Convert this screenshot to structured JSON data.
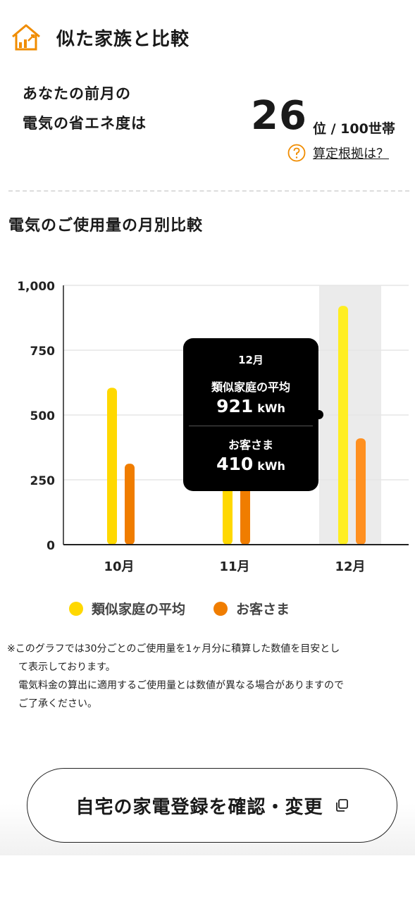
{
  "header": {
    "title": "似た家族と比較",
    "icon": "house-chart-icon"
  },
  "rank": {
    "label_line1": "あなたの前月の",
    "label_line2": "電気の省エネ度は",
    "value": "26",
    "suffix": "位 / 100世帯",
    "basis_link": "算定根拠は？",
    "basis_icon": "question-circle-icon"
  },
  "section_title": "電気のご使用量の月別比較",
  "chart_data": {
    "type": "bar",
    "categories": [
      "10月",
      "11月",
      "12月"
    ],
    "series": [
      {
        "name": "類似家庭の平均",
        "values": [
          605,
          610,
          921
        ],
        "color": "#FFD800"
      },
      {
        "name": "お客さま",
        "values": [
          312,
          300,
          410
        ],
        "color": "#F07D00"
      }
    ],
    "ylim": [
      0,
      1000
    ],
    "yticks": [
      0,
      250,
      500,
      750,
      1000
    ],
    "ytick_labels": [
      "0",
      "250",
      "500",
      "750",
      "1,000"
    ],
    "grid": true,
    "highlight_category": "12月",
    "legend_position": "bottom"
  },
  "tooltip": {
    "month": "12月",
    "label1": "類似家庭の平均",
    "value1": "921",
    "label2": "お客さま",
    "value2": "410",
    "unit": "kWh"
  },
  "legend": [
    {
      "label": "類似家庭の平均",
      "color": "#FFD800"
    },
    {
      "label": "お客さま",
      "color": "#F07D00"
    }
  ],
  "note": {
    "line1": "※このグラフでは30分ごとのご使用量を1ヶ月分に積算した数値を目安とし",
    "line2": "て表示しております。",
    "line3": "電気料金の算出に適用するご使用量とは数値が異なる場合がありますので",
    "line4": "ご了承ください。"
  },
  "cta": {
    "label": "自宅の家電登録を確認・変更",
    "icon": "external-window-icon"
  },
  "colors": {
    "accent": "#F08C00",
    "highlight_bg": "#EBEBEB"
  }
}
